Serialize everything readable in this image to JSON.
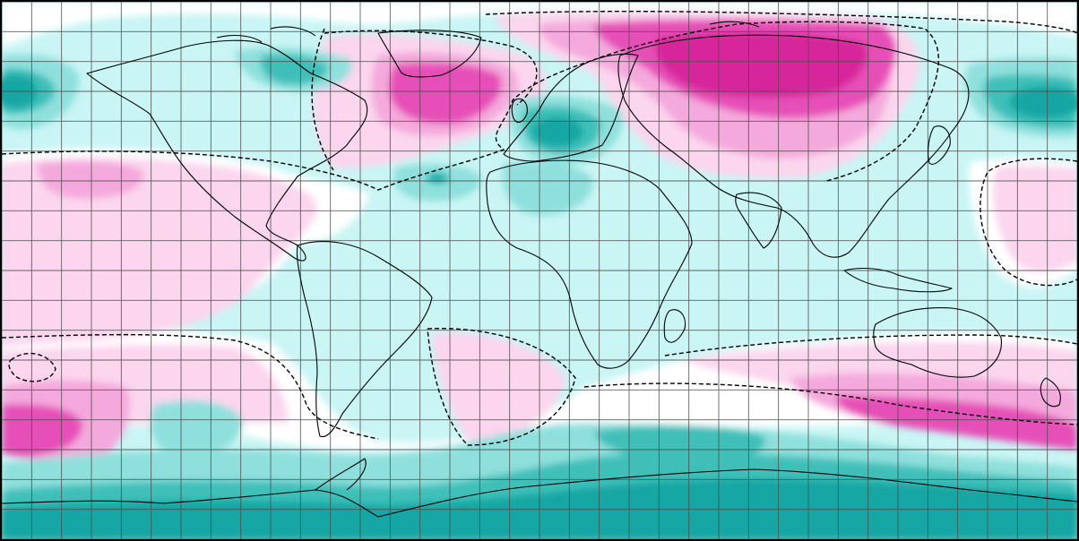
{
  "map": {
    "projection": "equirectangular",
    "extent": {
      "lon": [
        -180,
        180
      ],
      "lat": [
        -90,
        90
      ]
    },
    "graticule_step_deg": 10,
    "palette": {
      "strong_positive": "#d7279b",
      "moderate_positive": "#e64fb7",
      "weak_positive": "#f4a9dc",
      "slight_positive": "#fbd6ee",
      "near_zero": "#ffffff",
      "slight_negative": "#c9f5f4",
      "weak_negative": "#8fe0dd",
      "moderate_negative": "#3fbfb9",
      "strong_negative": "#14a6a3",
      "graticule": "#4a4a4a",
      "coastline": "#000000",
      "zero_contour": "#000000"
    },
    "legend": "none",
    "title": ""
  }
}
